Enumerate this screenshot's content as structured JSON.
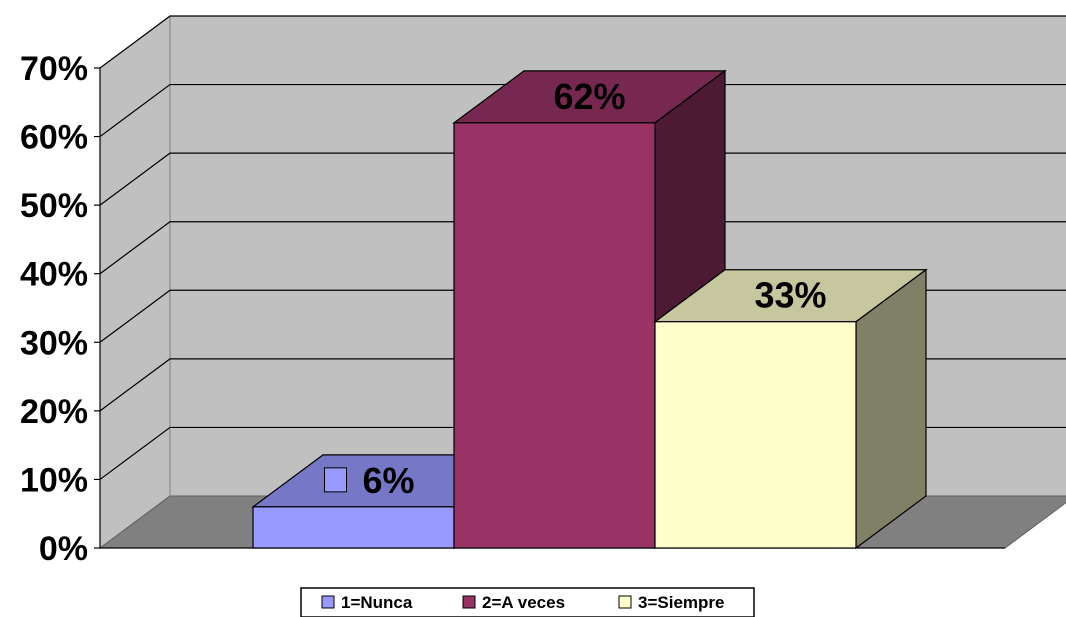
{
  "chart_data": {
    "type": "bar",
    "style": "3d-column",
    "title": "",
    "xlabel": "",
    "ylabel": "",
    "categories": [
      ""
    ],
    "series": [
      {
        "name": "1=Nunca",
        "values": [
          6
        ],
        "label": "6%",
        "color": "#9999FF"
      },
      {
        "name": "2=A veces",
        "values": [
          62
        ],
        "label": "62%",
        "color": "#993366"
      },
      {
        "name": "3=Siempre",
        "values": [
          33
        ],
        "label": "33%",
        "color": "#FFFFCC"
      }
    ],
    "ylim": [
      0,
      70
    ],
    "yticks": [
      {
        "value": 0,
        "label": "0%"
      },
      {
        "value": 10,
        "label": "10%"
      },
      {
        "value": 20,
        "label": "20%"
      },
      {
        "value": 30,
        "label": "30%"
      },
      {
        "value": 40,
        "label": "40%"
      },
      {
        "value": 50,
        "label": "50%"
      },
      {
        "value": 60,
        "label": "60%"
      },
      {
        "value": 70,
        "label": "70%"
      }
    ],
    "grid": true,
    "legend_position": "bottom",
    "wall_color": "#C0C0C0",
    "floor_color": "#808080"
  }
}
